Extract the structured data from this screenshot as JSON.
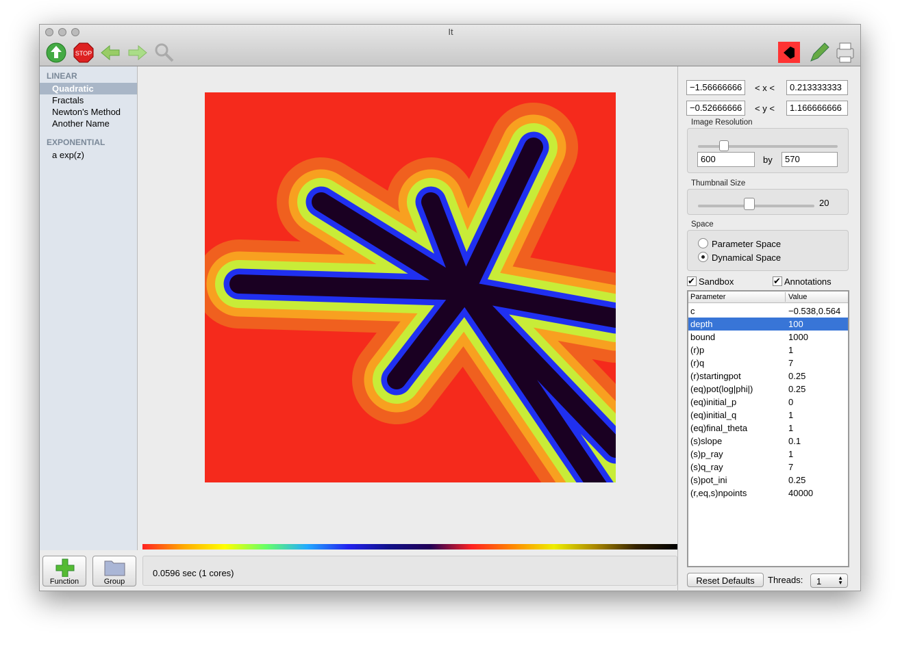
{
  "window": {
    "title": "It"
  },
  "toolbar": {
    "stop": "STOP"
  },
  "sidebar": {
    "groups": [
      {
        "heading": "LINEAR",
        "items": [
          "Quadratic",
          "Fractals",
          "Newton's Method",
          "Another Name"
        ]
      },
      {
        "heading": "EXPONENTIAL",
        "items": [
          "a exp(z)"
        ]
      }
    ],
    "buttons": [
      "Function",
      "Group"
    ]
  },
  "status": "0.0596 sec (1 cores)",
  "bounds": {
    "x_min": "−1.56666666",
    "x_label": "< x <",
    "x_max": "0.213333333",
    "y_min": "−0.52666666",
    "y_label": "< y <",
    "y_max": "1.166666666"
  },
  "resolution": {
    "label": "Image Resolution",
    "width": "600",
    "by": "by",
    "height": "570"
  },
  "thumbnail": {
    "label": "Thumbnail Size",
    "value": "20"
  },
  "space": {
    "label": "Space",
    "options": [
      "Parameter Space",
      "Dynamical Space"
    ]
  },
  "checks": [
    "Sandbox",
    "Annotations"
  ],
  "table": {
    "header": [
      "Parameter",
      "Value"
    ],
    "rows": [
      [
        "c",
        "−0.538,0.564"
      ],
      [
        "depth",
        "100"
      ],
      [
        "bound",
        "1000"
      ],
      [
        "(r)p",
        "1"
      ],
      [
        "(r)q",
        "7"
      ],
      [
        "(r)startingpot",
        "0.25"
      ],
      [
        "(eq)pot(log|phi|)",
        "0.25"
      ],
      [
        "(eq)initial_p",
        "0"
      ],
      [
        "(eq)initial_q",
        "1"
      ],
      [
        "(eq)final_theta",
        "1"
      ],
      [
        "(s)slope",
        "0.1"
      ],
      [
        "(s)p_ray",
        "1"
      ],
      [
        "(s)q_ray",
        "7"
      ],
      [
        "(s)pot_ini",
        "0.25"
      ],
      [
        "(r,eq,s)npoints",
        "40000"
      ]
    ]
  },
  "footer": {
    "reset": "Reset Defaults",
    "threads_label": "Threads:",
    "threads": "1"
  }
}
